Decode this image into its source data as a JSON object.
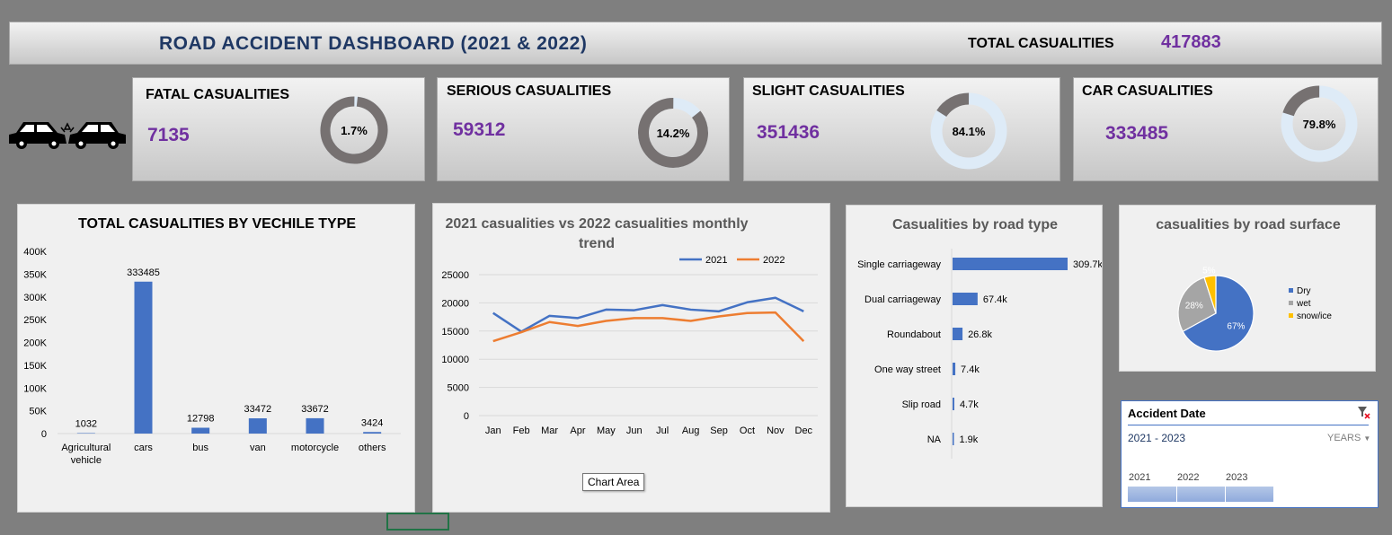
{
  "header": {
    "title": "ROAD ACCIDENT DASHBOARD (2021 & 2022)",
    "total_label": "TOTAL CASUALITIES",
    "total_value": "417883"
  },
  "kpis": {
    "fatal": {
      "label": "FATAL CASUALITIES",
      "value": "7135",
      "pct": "1.7%",
      "fraction": 0.017
    },
    "serious": {
      "label": "SERIOUS CASUALITIES",
      "value": "59312",
      "pct": "14.2%",
      "fraction": 0.142
    },
    "slight": {
      "label": "SLIGHT CASUALITIES",
      "value": "351436",
      "pct": "84.1%",
      "fraction": 0.841
    },
    "car": {
      "label": "CAR CASUALITIES",
      "value": "333485",
      "pct": "79.8%",
      "fraction": 0.798
    }
  },
  "colors": {
    "background": "#7f7f7f",
    "title_blue": "#1f3864",
    "value_purple": "#7030a0",
    "series_blue": "#4472c4",
    "series_orange": "#ed7d31",
    "donut_dark": "#767171",
    "donut_light": "#deebf7",
    "gray_slice": "#a5a5a5",
    "yellow_slice": "#ffc000"
  },
  "icons": {
    "car_crash": "car-crash-icon"
  },
  "chart_data": [
    {
      "type": "bar",
      "title": "TOTAL CASUALITIES BY VECHILE TYPE",
      "categories": [
        "Agricultural vehicle",
        "cars",
        "bus",
        "van",
        "motorcycle",
        "others"
      ],
      "category_lines": [
        [
          "Agricultural",
          "vehicle"
        ],
        [
          "cars"
        ],
        [
          "bus"
        ],
        [
          "van"
        ],
        [
          "motorcycle"
        ],
        [
          "others"
        ]
      ],
      "values": [
        1032,
        333485,
        12798,
        33472,
        33672,
        3424
      ],
      "data_labels": [
        "1032",
        "333485",
        "12798",
        "33472",
        "33672",
        "3424"
      ],
      "y_ticks": [
        "0",
        "50K",
        "100K",
        "150K",
        "200K",
        "250K",
        "300K",
        "350K",
        "400K"
      ],
      "ylim": [
        0,
        400000
      ],
      "grid": false
    },
    {
      "type": "line",
      "title": "2021 casualities vs 2022 casualities monthly trend",
      "title_lines": [
        "2021 casualities vs 2022 casualities monthly",
        "trend"
      ],
      "categories": [
        "Jan",
        "Feb",
        "Mar",
        "Apr",
        "May",
        "Jun",
        "Jul",
        "Aug",
        "Sep",
        "Oct",
        "Nov",
        "Dec"
      ],
      "series": [
        {
          "name": "2021",
          "color": "#4472c4",
          "values": [
            18200,
            14900,
            17700,
            17300,
            18800,
            18700,
            19600,
            18800,
            18500,
            20100,
            20900,
            18500
          ]
        },
        {
          "name": "2022",
          "color": "#ed7d31",
          "values": [
            13200,
            14800,
            16600,
            15900,
            16800,
            17300,
            17300,
            16800,
            17600,
            18200,
            18300,
            13200
          ]
        }
      ],
      "y_ticks": [
        "0",
        "5000",
        "10000",
        "15000",
        "20000",
        "25000"
      ],
      "ylim": [
        0,
        25000
      ],
      "legend": "top-right",
      "grid": true
    },
    {
      "type": "bar",
      "orientation": "horizontal",
      "title": "Casualities by road type",
      "categories": [
        "Single carriageway",
        "Dual carriageway",
        "Roundabout",
        "One way street",
        "Slip road",
        "NA"
      ],
      "values": [
        309700,
        67400,
        26800,
        7400,
        4700,
        1900
      ],
      "data_labels": [
        "309.7k",
        "67.4k",
        "26.8k",
        "7.4k",
        "4.7k",
        "1.9k"
      ]
    },
    {
      "type": "pie",
      "title": "casualities by road surface",
      "categories": [
        "Dry",
        "wet",
        "snow/ice"
      ],
      "values": [
        67,
        28,
        5
      ],
      "data_labels": [
        "67%",
        "28%",
        "5%"
      ],
      "colors": [
        "#4472c4",
        "#a5a5a5",
        "#ffc000"
      ],
      "legend": "right"
    }
  ],
  "slicer": {
    "title": "Accident Date",
    "range": "2021 - 2023",
    "level": "YEARS",
    "years": [
      "2021",
      "2022",
      "2023"
    ]
  },
  "tooltip": "Chart Area"
}
